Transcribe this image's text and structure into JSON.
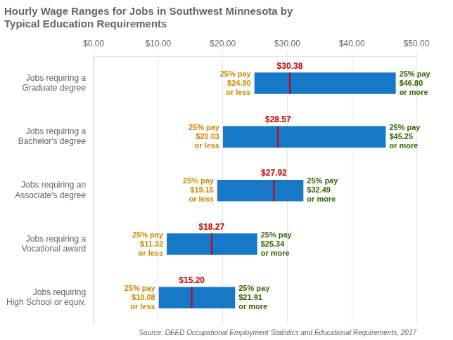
{
  "chart_data": {
    "type": "bar",
    "orientation": "horizontal",
    "title": "Hourly Wage Ranges for Jobs in Southwest Minnesota by\nTypical Education Requirements",
    "source": "Source: DEED Occupational Employment Statistics and Educational Requirements, 2017",
    "categories": [
      "Jobs requiring\nHigh School or equiv.",
      "Jobs requiring a\nVocational award",
      "Jobs requiring an\nAssociate's degree",
      "Jobs requiring a\nBachelor's degree",
      "Jobs requiring a\nGraduate degree"
    ],
    "series": [
      {
        "type": "bar",
        "color": "#1878c8",
        "values": [
          [
            10.08,
            21.91
          ],
          [
            11.32,
            25.34
          ],
          [
            19.15,
            32.49
          ],
          [
            20.03,
            45.25
          ],
          [
            24.9,
            46.8
          ]
        ]
      },
      {
        "type": "median",
        "color": "#cc0000",
        "values": [
          15.2,
          18.27,
          27.92,
          28.57,
          30.38
        ],
        "data_labels": true,
        "value_labels": [
          "$15.20",
          "$18.27",
          "$27.92",
          "$28.57",
          "$30.38"
        ]
      },
      {
        "type": "label",
        "color": "#cc8800",
        "values": [
          10.08,
          11.32,
          19.15,
          20.03,
          24.9
        ],
        "data_labels": true,
        "value_labels": [
          "25% pay\n$10.08\nor less",
          "25% pay\n$11.32\nor less",
          "25% pay\n$19.15\nor less",
          "25% pay\n$20.03\nor less",
          "25% pay\n$24.90\nor less"
        ]
      },
      {
        "type": "label",
        "color": "#336600",
        "values": [
          21.91,
          25.34,
          32.49,
          45.25,
          46.8
        ],
        "data_labels": true,
        "value_labels": [
          "25% pay\n$21.91\nor more",
          "25% pay\n$25.34\nor more",
          "25% pay\n$32.49\nor more",
          "25% pay\n$45.25\nor more",
          "25% pay\n$46.80\nor more"
        ]
      }
    ],
    "xlim": [
      0,
      50
    ],
    "xticks": [
      {
        "value": 0,
        "label": "$0.00"
      },
      {
        "value": 10,
        "label": "$10.00"
      },
      {
        "value": 20,
        "label": "$20.00"
      },
      {
        "value": 30,
        "label": "$30.00"
      },
      {
        "value": 40,
        "label": "$40.00"
      },
      {
        "value": 50,
        "label": "$50.00"
      }
    ],
    "grid": true
  }
}
